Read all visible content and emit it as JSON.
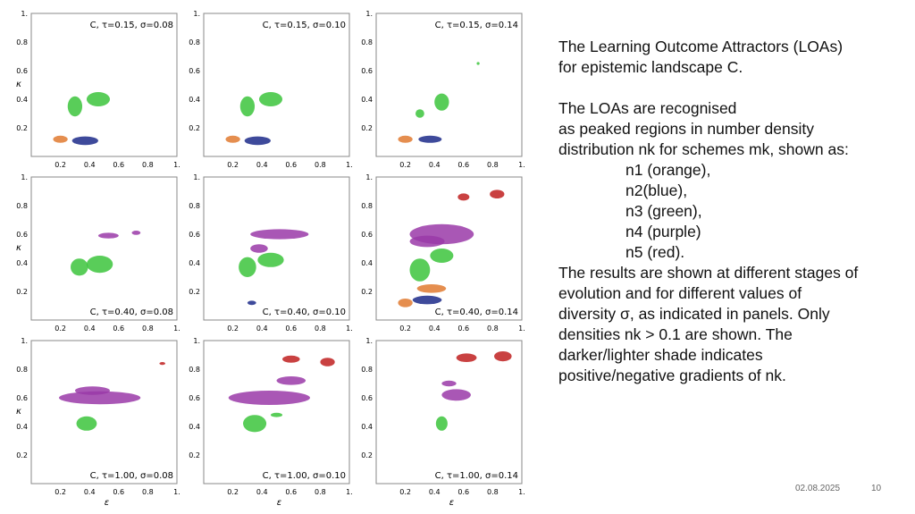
{
  "panels": {
    "axis_x": "ε",
    "axis_y": "κ",
    "xticks": [
      "0.2",
      "0.4",
      "0.6",
      "0.8",
      "1."
    ],
    "yticks": [
      "0.2",
      "0.4",
      "0.6",
      "0.8",
      "1."
    ],
    "labels": [
      [
        "C, τ=0.15, σ=0.08",
        "C, τ=0.15, σ=0.10",
        "C, τ=0.15, σ=0.14"
      ],
      [
        "C, τ=0.40, σ=0.08",
        "C, τ=0.40, σ=0.10",
        "C, τ=0.40, σ=0.14"
      ],
      [
        "C, τ=1.00, σ=0.08",
        "C, τ=1.00, σ=0.10",
        "C, τ=1.00, σ=0.14"
      ]
    ]
  },
  "text": {
    "intro": [
      "The Learning Outcome Attractors (LOAs)",
      "for epistemic landscape C."
    ],
    "recognised": [
      "The LOAs are recognised",
      "as peaked regions in number density",
      "distribution nk for schemes mk, shown as:"
    ],
    "list": [
      "n1 (orange),",
      "n2(blue),",
      "n3 (green),",
      "n4 (purple)",
      "n5 (red)."
    ],
    "results": [
      "The results are shown at different stages of",
      "evolution and for different values of",
      "diversity σ, as indicated in panels. Only",
      "densities nk > 0.1 are shown. The",
      "darker/lighter shade indicates",
      "positive/negative gradients of nk."
    ]
  },
  "footer": {
    "date": "02.08.2025",
    "page": "10"
  }
}
